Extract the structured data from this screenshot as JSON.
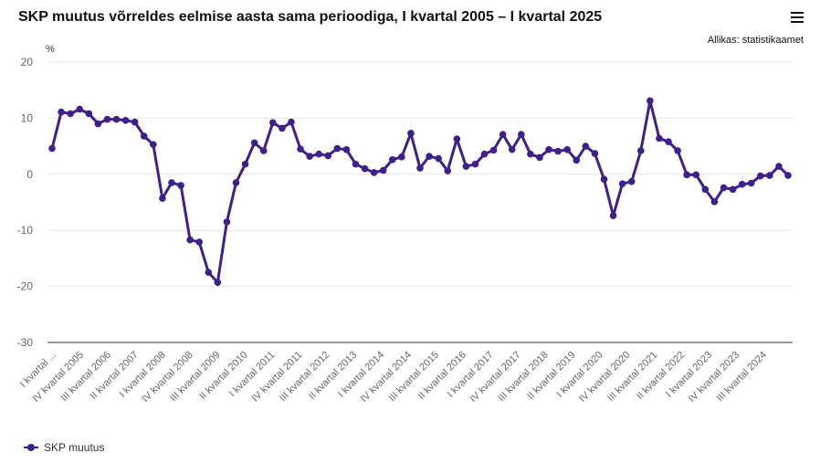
{
  "header": {
    "title": "SKP muutus võrreldes eelmise aasta sama perioodiga, I kvartal 2005 – I kvartal 2025",
    "source": "Allikas: statistikaamet",
    "menu_icon": "hamburger-menu-icon"
  },
  "colors": {
    "series": "#3f1f8c",
    "grid": "#e6e6e6",
    "axis": "#333333",
    "tick_text": "#666666"
  },
  "chart_data": {
    "type": "line",
    "title": "SKP muutus võrreldes eelmise aasta sama perioodiga, I kvartal 2005 – I kvartal 2025",
    "ylabel": "%",
    "ylim": [
      -30,
      20
    ],
    "yticks": [
      20,
      10,
      0,
      -10,
      -20,
      -30
    ],
    "grid": true,
    "legend": "bottom-left",
    "x_tick_labels": [
      "I kvartal ...",
      "IV kvartal 2005",
      "III kvartal 2006",
      "II kvartal 2007",
      "I kvartal 2008",
      "IV kvartal 2008",
      "III kvartal 2009",
      "II kvartal 2010",
      "I kvartal 2011",
      "IV kvartal 2011",
      "III kvartal 2012",
      "II kvartal 2013",
      "I kvartal 2014",
      "IV kvartal 2014",
      "III kvartal 2015",
      "II kvartal 2016",
      "I kvartal 2017",
      "IV kvartal 2017",
      "III kvartal 2018",
      "II kvartal 2019",
      "I kvartal 2020",
      "IV kvartal 2020",
      "III kvartal 2021",
      "II kvartal 2022",
      "I kvartal 2023",
      "IV kvartal 2023",
      "III kvartal 2024"
    ],
    "series": [
      {
        "name": "SKP muutus",
        "values": [
          4.6,
          11.1,
          10.8,
          11.6,
          10.8,
          9.0,
          9.8,
          9.8,
          9.6,
          9.3,
          6.8,
          5.3,
          -4.3,
          -1.5,
          -2.0,
          -11.7,
          -12.1,
          -17.5,
          -19.3,
          -8.5,
          -1.5,
          1.8,
          5.6,
          4.2,
          9.2,
          8.2,
          9.3,
          4.5,
          3.2,
          3.6,
          3.3,
          4.6,
          4.4,
          1.8,
          1.0,
          0.3,
          0.7,
          2.6,
          3.1,
          7.3,
          1.1,
          3.2,
          2.8,
          0.6,
          6.3,
          1.4,
          1.8,
          3.6,
          4.3,
          7.1,
          4.4,
          7.1,
          3.6,
          3.0,
          4.4,
          4.1,
          4.4,
          2.5,
          5.0,
          3.7,
          -0.9,
          -7.4,
          -1.7,
          -1.3,
          4.2,
          13.1,
          6.4,
          5.8,
          4.2,
          -0.1,
          -0.1,
          -2.7,
          -4.9,
          -2.4,
          -2.7,
          -1.8,
          -1.6,
          -0.3,
          -0.2,
          1.4,
          -0.2
        ]
      }
    ]
  }
}
